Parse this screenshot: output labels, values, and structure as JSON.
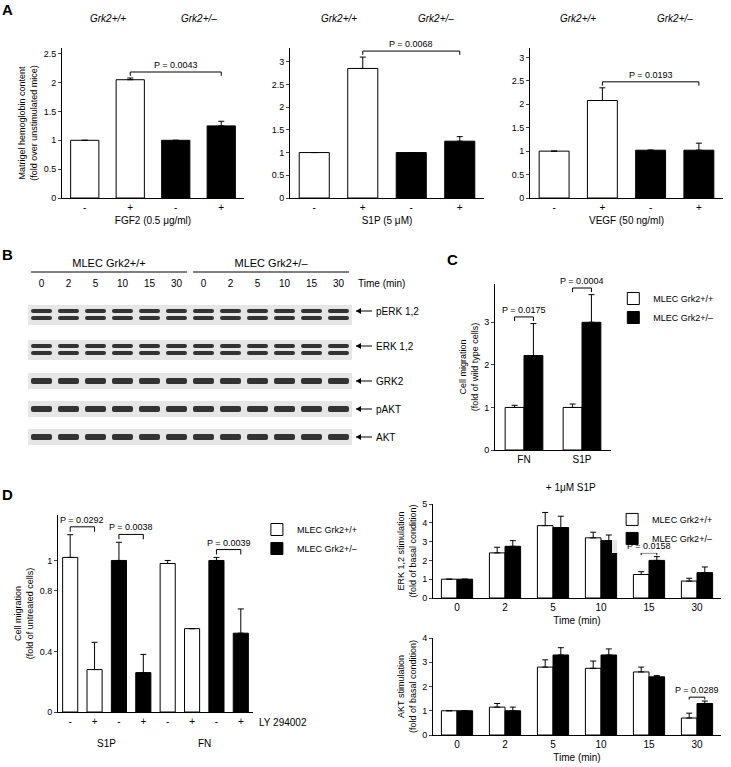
{
  "chart_data": [
    {
      "panel": "A",
      "type": "bar",
      "categories": [
        "-",
        "+",
        "-",
        "+"
      ],
      "x_label": "FGF2 (0.5 μg/ml)",
      "y_label": "Matrigel hemoglobin content (fold over unstimulated mice)",
      "header_groups": [
        {
          "label": "Grk2+/+",
          "from": 0,
          "to": 1
        },
        {
          "label": "Grk2+/–",
          "from": 2,
          "to": 3
        }
      ],
      "series": [
        {
          "color": "#ffffff",
          "values": [
            1,
            2.05,
            null,
            null
          ],
          "error": [
            null,
            0.03,
            null,
            null
          ]
        },
        {
          "color": "#000000",
          "values": [
            null,
            null,
            1,
            1.25
          ],
          "error": [
            null,
            null,
            null,
            0.08
          ]
        }
      ],
      "annotations": [
        {
          "text": "P = 0.0043",
          "from": 1,
          "to": 3
        }
      ],
      "ylim": [
        0,
        2.6
      ],
      "yticks": [
        0,
        0.5,
        1,
        1.5,
        2,
        2.5
      ],
      "grid": false
    },
    {
      "type": "bar",
      "categories": [
        "-",
        "+",
        "-",
        "+"
      ],
      "x_label": "S1P (5 μM)",
      "header_groups": [
        {
          "label": "Grk2+/+",
          "from": 0,
          "to": 1
        },
        {
          "label": "Grk2+/–",
          "from": 2,
          "to": 3
        }
      ],
      "series": [
        {
          "color": "#ffffff",
          "values": [
            1,
            2.85,
            null,
            null
          ],
          "error": [
            null,
            0.25,
            null,
            null
          ]
        },
        {
          "color": "#000000",
          "values": [
            null,
            null,
            1,
            1.25
          ],
          "error": [
            null,
            null,
            null,
            0.1
          ]
        }
      ],
      "annotations": [
        {
          "text": "P = 0.0068",
          "from": 1,
          "to": 3
        }
      ],
      "ylim": [
        0,
        3.3
      ],
      "yticks": [
        0,
        0.5,
        1,
        1.5,
        2,
        2.5,
        3
      ],
      "grid": false
    },
    {
      "type": "bar",
      "categories": [
        "-",
        "+",
        "-",
        "+"
      ],
      "x_label": "VEGF (50 ng/ml)",
      "header_groups": [
        {
          "label": "Grk2+/+",
          "from": 0,
          "to": 1
        },
        {
          "label": "Grk2+/–",
          "from": 2,
          "to": 3
        }
      ],
      "series": [
        {
          "color": "#ffffff",
          "values": [
            1,
            2.08,
            null,
            null
          ],
          "error": [
            null,
            0.27,
            null,
            null
          ]
        },
        {
          "color": "#000000",
          "values": [
            null,
            null,
            1.02,
            1.02
          ],
          "error": [
            null,
            null,
            null,
            0.15
          ]
        }
      ],
      "annotations": [
        {
          "text": "P = 0.0193",
          "from": 1,
          "to": 3
        }
      ],
      "ylim": [
        0,
        3.2
      ],
      "yticks": [
        0,
        0.5,
        1,
        1.5,
        2,
        2.5,
        3
      ],
      "grid": false
    },
    {
      "panel": "C",
      "type": "bar",
      "categories": [
        "FN",
        "S1P"
      ],
      "y_label": "Cell migration (fold of wild type cells)",
      "series": [
        {
          "name": "MLEC Grk2+/+",
          "color": "#ffffff",
          "values": [
            1,
            1
          ],
          "error": [
            0.05,
            0.08
          ]
        },
        {
          "name": "MLEC Grk2+/–",
          "color": "#000000",
          "values": [
            2.22,
            3.0
          ],
          "error": [
            0.75,
            0.65
          ]
        }
      ],
      "annotations": [
        {
          "text": "P = 0.0175",
          "at": 0
        },
        {
          "text": "P = 0.0004",
          "at": 1
        }
      ],
      "legend": "right",
      "ylim": [
        0,
        3.9
      ],
      "yticks": [
        0,
        1,
        2,
        3
      ],
      "grid": false
    },
    {
      "panel": "D",
      "type": "bar",
      "categories": [
        "-",
        "+",
        "-",
        "+",
        "-",
        "+",
        "-",
        "+"
      ],
      "y_label": "Cell migration (fold of untreated cells)",
      "tick_row_label": "LY 294002",
      "axis_groups": [
        {
          "label": "S1P",
          "from": 0,
          "to": 3
        },
        {
          "label": "FN",
          "from": 4,
          "to": 7
        }
      ],
      "series": [
        {
          "name": "MLEC Grk2+/+",
          "color": "#ffffff",
          "values": [
            1.02,
            0.28,
            null,
            null,
            0.98,
            0.55,
            null,
            null
          ],
          "error": [
            0.15,
            0.18,
            null,
            null,
            0.02,
            null,
            null,
            null
          ]
        },
        {
          "name": "MLEC Grk2+/–",
          "color": "#000000",
          "values": [
            null,
            null,
            1.0,
            0.26,
            null,
            null,
            1.0,
            0.52
          ],
          "error": [
            null,
            null,
            0.12,
            0.12,
            null,
            null,
            0.02,
            0.16
          ]
        }
      ],
      "annotations": [
        {
          "text": "P = 0.0292",
          "from": 0,
          "to": 1
        },
        {
          "text": "P = 0.0038",
          "from": 2,
          "to": 3
        },
        {
          "text": "P = 0.0039",
          "from": 6,
          "to": 7
        }
      ],
      "legend": "right",
      "ylim": [
        0,
        1.3
      ],
      "yticks": [
        0,
        0.4,
        0.8,
        1
      ],
      "grid": false
    },
    {
      "type": "bar",
      "title": "+ 1μM S1P",
      "categories": [
        "0",
        "2",
        "5",
        "10",
        "15",
        "30"
      ],
      "x_label": "Time (min)",
      "y_label": "ERK 1,2 stimulation (fold of basal condition)",
      "series": [
        {
          "name": "MLEC Grk2+/+",
          "color": "#ffffff",
          "values": [
            1,
            2.4,
            3.85,
            3.2,
            1.25,
            0.9
          ],
          "error": [
            0,
            0.3,
            0.7,
            0.3,
            0.15,
            0.15
          ]
        },
        {
          "name": "MLEC Grk2+/–",
          "color": "#000000",
          "values": [
            1,
            2.75,
            3.75,
            3.05,
            2.0,
            1.35
          ],
          "error": [
            0,
            0.3,
            0.6,
            0.3,
            0.2,
            0.3
          ]
        }
      ],
      "annotations": [
        {
          "text": "P = 0.0158",
          "at": 4
        }
      ],
      "legend": "top right",
      "ylim": [
        0,
        5
      ],
      "yticks": [
        0,
        1,
        2,
        3,
        4,
        5
      ],
      "grid": false
    },
    {
      "type": "bar",
      "categories": [
        "0",
        "2",
        "5",
        "10",
        "15",
        "30"
      ],
      "x_label": "Time (min)",
      "y_label": "AKT stimulation (fold of basal condition)",
      "series": [
        {
          "color": "#ffffff",
          "values": [
            1,
            1.15,
            2.8,
            2.75,
            2.6,
            0.7
          ],
          "error": [
            0,
            0.15,
            0.3,
            0.3,
            0.2,
            0.2
          ]
        },
        {
          "color": "#000000",
          "values": [
            1,
            1.0,
            3.3,
            3.3,
            2.4,
            1.3
          ],
          "error": [
            0,
            0.15,
            0.3,
            0.25,
            0.05,
            0.1
          ]
        }
      ],
      "annotations": [
        {
          "text": "P = 0.0289",
          "at": 5
        }
      ],
      "ylim": [
        0,
        4
      ],
      "yticks": [
        0,
        1,
        2,
        3,
        4
      ],
      "grid": false
    }
  ],
  "blot": {
    "panel": "B",
    "groups": [
      "MLEC Grk2+/+",
      "MLEC Grk2+/–"
    ],
    "lanes": [
      "0",
      "2",
      "5",
      "10",
      "15",
      "30"
    ],
    "lane_label": "Time (min)",
    "rows": [
      "pERK 1,2",
      "ERK 1,2",
      "GRK2",
      "pAKT",
      "AKT"
    ]
  }
}
